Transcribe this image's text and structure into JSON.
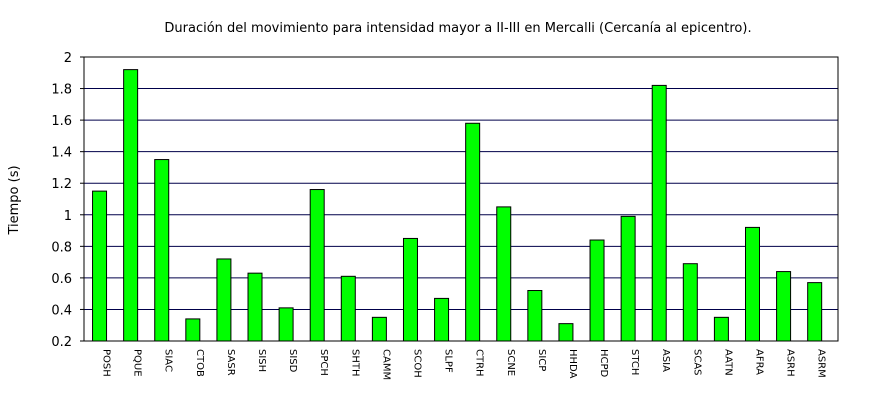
{
  "chart_data": {
    "type": "bar",
    "title": "Duración del movimiento para intensidad mayor a II-III en Mercalli (Cercanía al epicentro).",
    "xlabel": "",
    "ylabel": "Tiempo (s)",
    "ylim": [
      0.2,
      2
    ],
    "yticks": [
      "0.2",
      "0.4",
      "0.6",
      "0.8",
      "1",
      "1.2",
      "1.4",
      "1.6",
      "1.8",
      "2"
    ],
    "grid": true,
    "bar_color": "#00ff00",
    "categories": [
      "POSH",
      "PQUE",
      "SIAC",
      "CTOB",
      "SASR",
      "SISH",
      "SISD",
      "SPCH",
      "SHTH",
      "CAMM",
      "SCOH",
      "SLPF",
      "CTRH",
      "SCNE",
      "SICP",
      "HHDA",
      "HCPD",
      "STCH",
      "ASIA",
      "SCAS",
      "AATN",
      "AFRA",
      "ASRH",
      "ASRM"
    ],
    "values": [
      1.15,
      1.92,
      1.35,
      0.34,
      0.72,
      0.63,
      0.41,
      1.16,
      0.61,
      0.35,
      0.85,
      0.47,
      1.58,
      1.05,
      0.52,
      0.31,
      0.84,
      0.99,
      1.82,
      0.69,
      0.35,
      0.92,
      0.64,
      0.57
    ]
  }
}
